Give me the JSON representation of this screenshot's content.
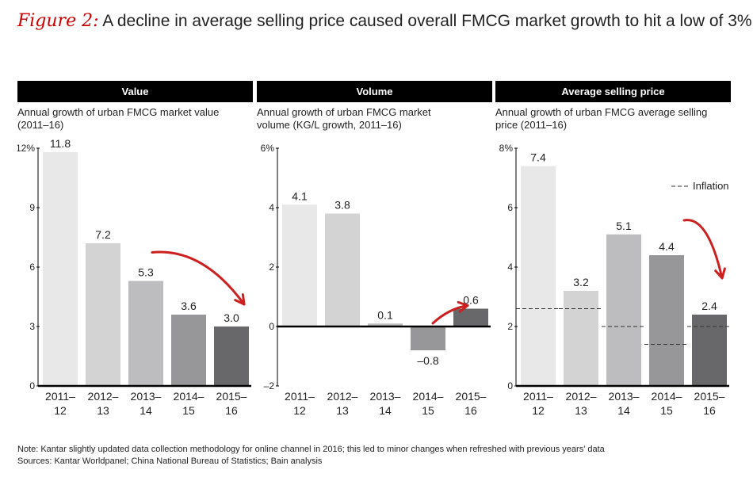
{
  "figure": {
    "label": "Figure 2:",
    "title": "A decline in average selling price caused overall FMCG market growth to hit a low of 3%"
  },
  "chart_data": [
    {
      "type": "bar",
      "header": "Value",
      "title": "Annual growth of urban FMCG market value (2011–16)",
      "subtitle_lines": [
        "Annual growth of urban FMCG market value",
        "(2011–16)"
      ],
      "categories": [
        [
          "2011–",
          "12"
        ],
        [
          "2012–",
          "13"
        ],
        [
          "2013–",
          "14"
        ],
        [
          "2014–",
          "15"
        ],
        [
          "2015–",
          "16"
        ]
      ],
      "values": [
        11.8,
        7.2,
        5.3,
        3.6,
        3.0
      ],
      "labels": [
        "11.8",
        "7.2",
        "5.3",
        "3.6",
        "3.0"
      ],
      "ylim": [
        0,
        12
      ],
      "yticks": [
        0,
        3,
        6,
        9,
        12
      ],
      "ytick_labels": [
        "0",
        "3",
        "6",
        "9",
        "12%"
      ],
      "colors": [
        "#e8e8e8",
        "#d3d3d4",
        "#bdbdbf",
        "#979799",
        "#68686a"
      ],
      "arrow": {
        "from_bar": 2,
        "to_bar": 4
      }
    },
    {
      "type": "bar",
      "header": "Volume",
      "title": "Annual growth of urban FMCG market volume (KG/L growth, 2011–16)",
      "subtitle_lines": [
        "Annual growth of urban FMCG market",
        "volume (KG/L growth, 2011–16)"
      ],
      "categories": [
        [
          "2011–",
          "12"
        ],
        [
          "2012–",
          "13"
        ],
        [
          "2013–",
          "14"
        ],
        [
          "2014–",
          "15"
        ],
        [
          "2015–",
          "16"
        ]
      ],
      "values": [
        4.1,
        3.8,
        0.1,
        -0.8,
        0.6
      ],
      "labels": [
        "4.1",
        "3.8",
        "0.1",
        "–0.8",
        "0.6"
      ],
      "ylim": [
        -2,
        6
      ],
      "yticks": [
        -2,
        0,
        2,
        4,
        6
      ],
      "ytick_labels": [
        "–2",
        "0",
        "2",
        "4",
        "6%"
      ],
      "colors": [
        "#e8e8e8",
        "#d3d3d4",
        "#bdbdbf",
        "#979799",
        "#68686a"
      ],
      "arrow": {
        "from_bar": 3,
        "to_bar": 4
      }
    },
    {
      "type": "bar",
      "header": "Average selling price",
      "title": "Annual growth of urban FMCG average selling price (2011–16)",
      "subtitle_lines": [
        "Annual growth of urban FMCG average selling",
        "price (2011–16)"
      ],
      "categories": [
        [
          "2011–",
          "12"
        ],
        [
          "2012–",
          "13"
        ],
        [
          "2013–",
          "14"
        ],
        [
          "2014–",
          "15"
        ],
        [
          "2015–",
          "16"
        ]
      ],
      "values": [
        7.4,
        3.2,
        5.1,
        4.4,
        2.4
      ],
      "labels": [
        "7.4",
        "3.2",
        "5.1",
        "4.4",
        "2.4"
      ],
      "ylim": [
        0,
        8
      ],
      "yticks": [
        0,
        2,
        4,
        6,
        8
      ],
      "ytick_labels": [
        "0",
        "2",
        "4",
        "6",
        "8%"
      ],
      "colors": [
        "#e8e8e8",
        "#d3d3d4",
        "#bdbdbf",
        "#979799",
        "#68686a"
      ],
      "inflation": {
        "label": "Inflation",
        "values": [
          2.6,
          2.6,
          2.0,
          1.4,
          2.0
        ]
      },
      "arrow": {
        "from_bar": 3,
        "to_bar": 4
      }
    }
  ],
  "notes": {
    "note": "Note: Kantar slightly updated data collection methodology for online channel in 2016; this led to minor changes when refreshed with previous years' data",
    "sources": "Sources: Kantar Worldpanel; China National Bureau of Statistics; Bain analysis"
  },
  "colors": {
    "arrow": "#cc1f1f",
    "header_bg": "#000000",
    "axis": "#000000"
  }
}
